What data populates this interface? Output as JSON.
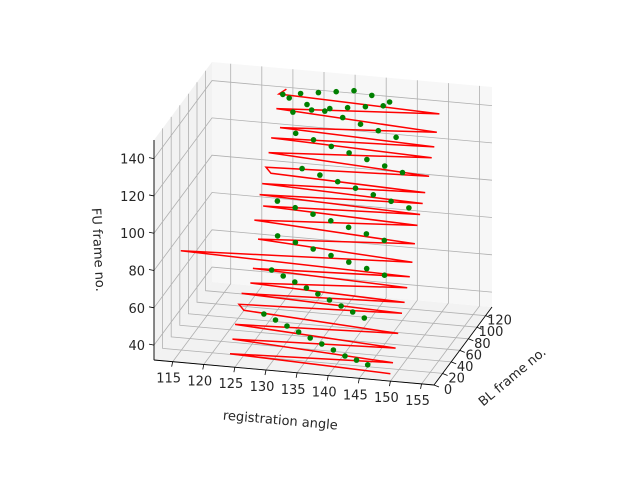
{
  "chart_data": {
    "type": "scatter",
    "projection": "3d",
    "xlabel": "registration angle",
    "ylabel": "BL frame no.",
    "zlabel": "FU frame no.",
    "xlim": [
      157,
      112
    ],
    "ylim": [
      0,
      135
    ],
    "zlim": [
      32,
      150
    ],
    "x_ticks": [
      155,
      150,
      145,
      140,
      135,
      130,
      125,
      120,
      115
    ],
    "y_ticks": [
      0,
      20,
      40,
      60,
      80,
      100,
      120
    ],
    "z_ticks": [
      40,
      60,
      80,
      100,
      120,
      140
    ],
    "grid": true,
    "colors": {
      "line": "#ff0000",
      "points": "#008000",
      "pane": "#f2f2f2",
      "pane_back": "#f7f7f7"
    },
    "series": [
      {
        "kind": "line",
        "color": "#ff0000",
        "x": [
          150,
          124,
          150,
          124,
          150,
          124,
          150,
          125,
          124,
          150,
          124,
          150,
          125,
          150,
          125,
          150,
          113,
          150,
          125,
          150,
          124,
          150,
          125,
          150,
          124,
          150,
          124,
          150,
          125,
          124,
          150,
          124,
          150,
          124,
          150,
          125,
          150,
          124,
          150,
          124,
          125
        ],
        "y": [
          0,
          3,
          6,
          9,
          12,
          15,
          18,
          21,
          24,
          27,
          30,
          33,
          36,
          39,
          42,
          45,
          48,
          51,
          54,
          57,
          60,
          63,
          66,
          69,
          72,
          75,
          78,
          81,
          84,
          87,
          90,
          93,
          96,
          99,
          102,
          105,
          108,
          111,
          114,
          117,
          120
        ],
        "z": [
          36,
          38,
          40,
          44,
          46,
          50,
          52,
          56,
          58,
          60,
          62,
          64,
          66,
          70,
          72,
          74,
          76,
          80,
          84,
          88,
          92,
          96,
          98,
          100,
          102,
          104,
          106,
          108,
          110,
          112,
          114,
          118,
          122,
          124,
          126,
          128,
          132,
          136,
          140,
          142,
          144
        ]
      },
      {
        "kind": "points",
        "color": "#008000",
        "x": [
          146,
          144,
          142,
          140,
          138,
          136,
          134,
          132,
          130,
          128,
          144,
          142,
          140,
          138,
          136,
          134,
          132,
          130,
          128,
          146,
          143,
          140,
          137,
          134,
          131,
          128,
          145,
          142,
          139,
          136,
          133,
          130,
          127,
          148,
          145,
          142,
          139,
          136,
          133,
          130,
          146,
          143,
          140,
          137,
          134,
          131,
          128,
          144,
          141,
          138,
          135,
          132,
          129,
          126,
          142,
          139,
          136,
          133,
          130,
          127,
          124,
          140,
          137,
          134,
          131,
          128,
          125
        ],
        "y": [
          5,
          8,
          10,
          12,
          14,
          16,
          18,
          20,
          22,
          24,
          26,
          28,
          30,
          32,
          34,
          36,
          38,
          40,
          42,
          44,
          46,
          48,
          50,
          52,
          54,
          56,
          58,
          60,
          62,
          64,
          66,
          68,
          70,
          72,
          74,
          76,
          78,
          80,
          82,
          84,
          86,
          88,
          90,
          92,
          94,
          96,
          98,
          100,
          102,
          104,
          106,
          108,
          110,
          112,
          114,
          116,
          118,
          120,
          122,
          124,
          126,
          128,
          130,
          132,
          134,
          135,
          135
        ],
        "z": [
          38,
          39,
          40,
          42,
          44,
          46,
          48,
          50,
          52,
          54,
          56,
          58,
          60,
          62,
          64,
          66,
          68,
          70,
          72,
          74,
          76,
          78,
          80,
          82,
          84,
          86,
          88,
          90,
          92,
          94,
          96,
          98,
          100,
          102,
          104,
          106,
          108,
          110,
          112,
          114,
          116,
          118,
          120,
          122,
          124,
          126,
          128,
          130,
          132,
          134,
          136,
          138,
          140,
          142,
          144,
          146,
          147,
          145,
          143,
          141,
          139,
          137,
          135,
          133,
          131,
          129,
          127
        ]
      }
    ]
  }
}
